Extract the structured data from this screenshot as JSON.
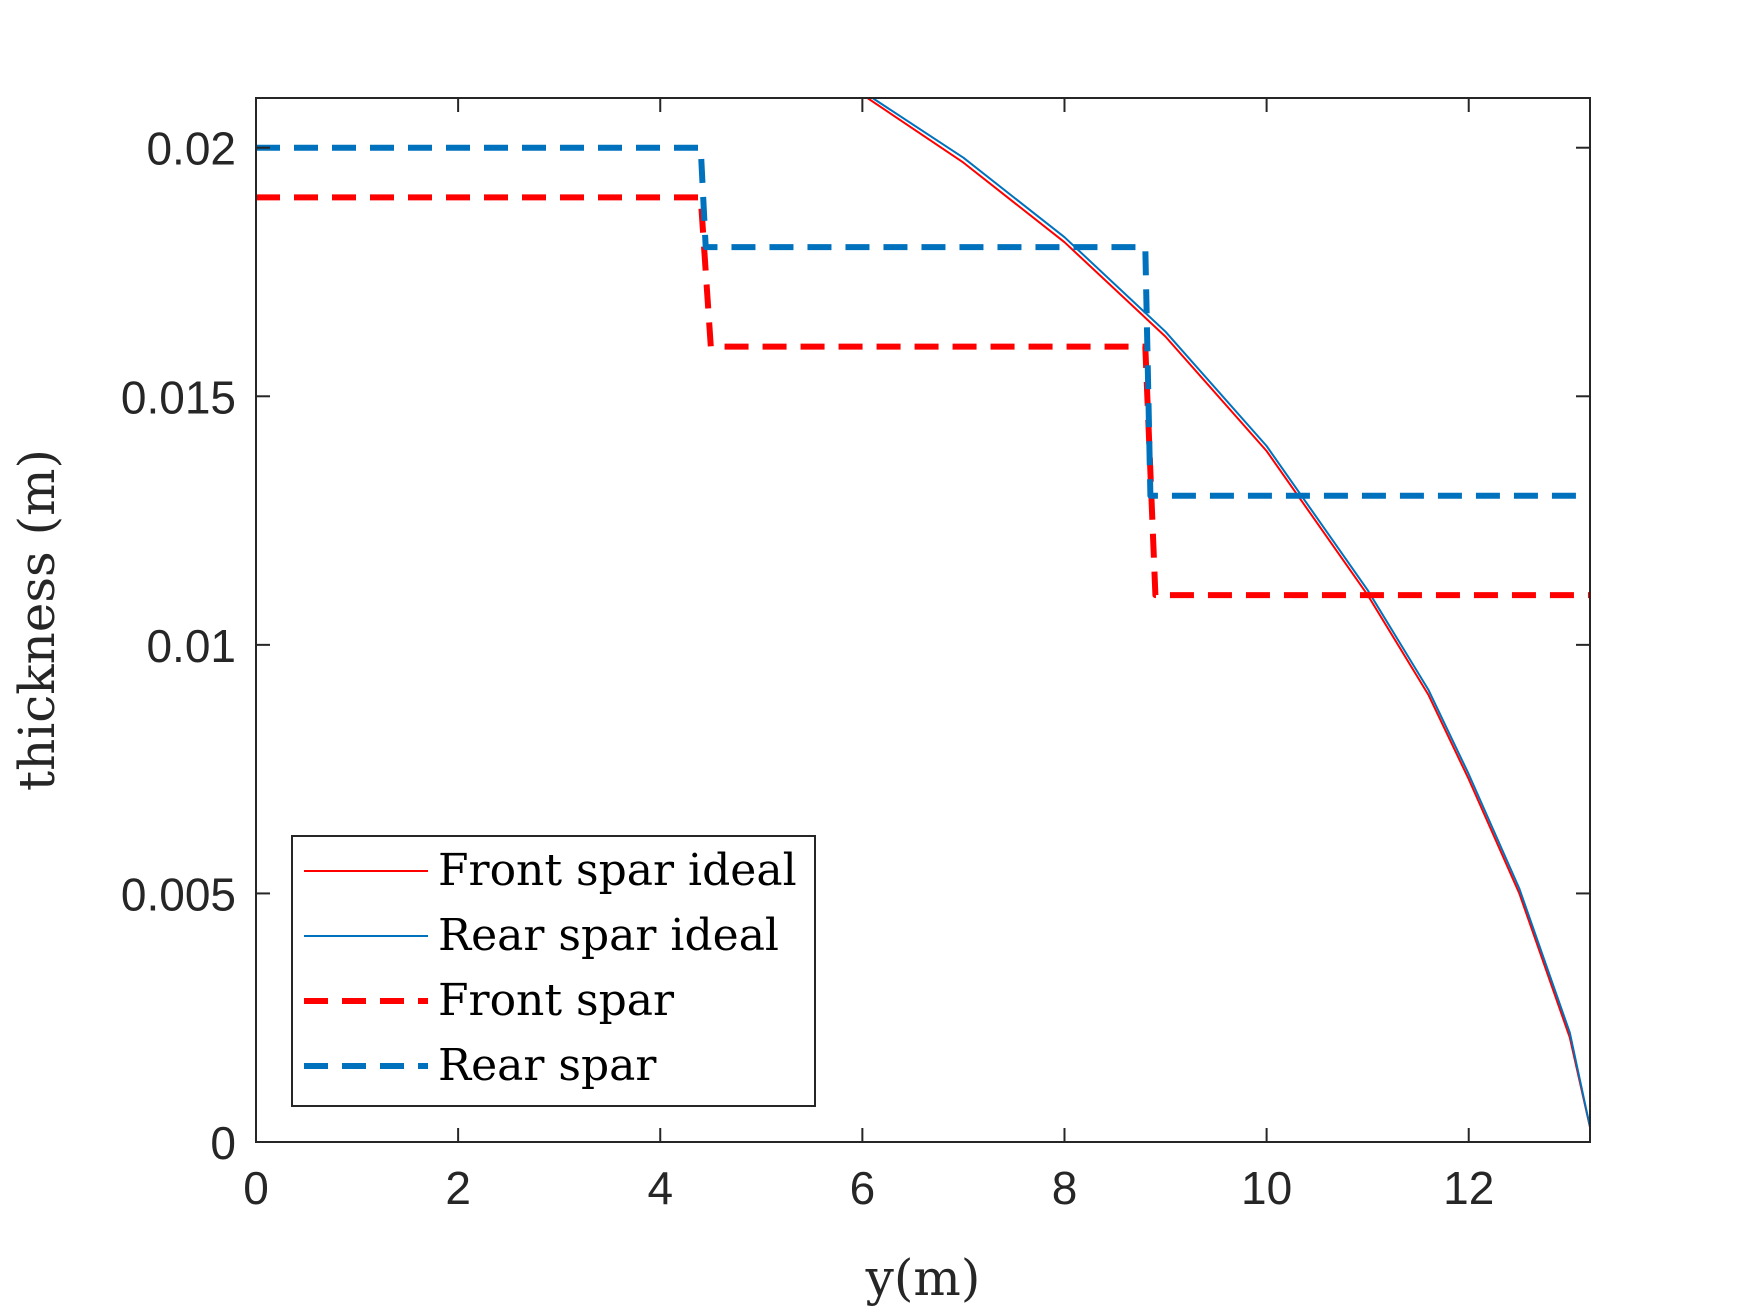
{
  "chart_data": {
    "type": "line",
    "xlabel": "y(m)",
    "ylabel": "thickness (m)",
    "xlim": [
      0,
      13.2
    ],
    "ylim": [
      0,
      0.021
    ],
    "xticks": [
      0,
      2,
      4,
      6,
      8,
      10,
      12
    ],
    "xtick_labels": [
      "0",
      "2",
      "4",
      "6",
      "8",
      "10",
      "12"
    ],
    "yticks": [
      0,
      0.005,
      0.01,
      0.015,
      0.02
    ],
    "ytick_labels": [
      "0",
      "0.005",
      "0.01",
      "0.015",
      "0.02"
    ],
    "grid": false,
    "legend_position": "bottom-left",
    "series": [
      {
        "name": "Front spar ideal",
        "style": "solid-thin",
        "color": "#ff0000",
        "x": [
          6.05,
          7.0,
          8.0,
          9.0,
          10.0,
          11.0,
          11.6,
          12.0,
          12.5,
          13.0,
          13.2
        ],
        "y": [
          0.021,
          0.0197,
          0.0181,
          0.0162,
          0.0139,
          0.011,
          0.009,
          0.0073,
          0.005,
          0.0021,
          0.0003
        ]
      },
      {
        "name": "Rear spar ideal",
        "style": "solid-thin",
        "color": "#0072bd",
        "x": [
          6.1,
          7.0,
          8.0,
          9.0,
          10.0,
          11.0,
          11.6,
          12.0,
          12.5,
          13.0,
          13.2
        ],
        "y": [
          0.021,
          0.0198,
          0.0182,
          0.0163,
          0.014,
          0.0111,
          0.0091,
          0.0074,
          0.0051,
          0.0022,
          0.0003
        ]
      },
      {
        "name": "Front spar",
        "style": "dashed-thick",
        "color": "#ff0000",
        "x": [
          0,
          4.4,
          4.5,
          8.8,
          8.9,
          13.2
        ],
        "y": [
          0.019,
          0.019,
          0.016,
          0.016,
          0.011,
          0.011
        ]
      },
      {
        "name": "Rear spar",
        "style": "dashed-thick",
        "color": "#0072bd",
        "x": [
          0,
          4.4,
          4.45,
          8.8,
          8.85,
          13.2
        ],
        "y": [
          0.02,
          0.02,
          0.018,
          0.018,
          0.013,
          0.013
        ]
      }
    ]
  }
}
